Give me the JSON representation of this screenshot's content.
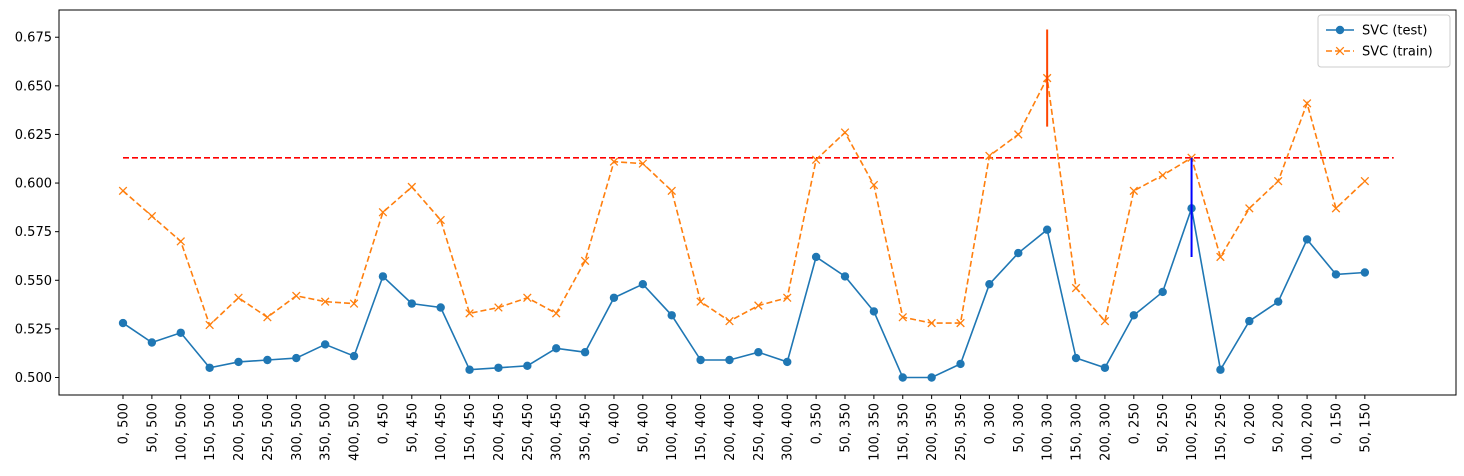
{
  "chart_data": {
    "type": "line",
    "categories": [
      "0, 500",
      "50, 500",
      "100, 500",
      "150, 500",
      "200, 500",
      "250, 500",
      "300, 500",
      "350, 500",
      "400, 500",
      "0, 450",
      "50, 450",
      "100, 450",
      "150, 450",
      "200, 450",
      "250, 450",
      "300, 450",
      "350, 450",
      "0, 400",
      "50, 400",
      "100, 400",
      "150, 400",
      "200, 400",
      "250, 400",
      "300, 400",
      "0, 350",
      "50, 350",
      "100, 350",
      "150, 350",
      "200, 350",
      "250, 350",
      "0, 300",
      "50, 300",
      "100, 300",
      "150, 300",
      "200, 300",
      "0, 250",
      "50, 250",
      "100, 250",
      "150, 250",
      "0, 200",
      "50, 200",
      "100, 200",
      "0, 150",
      "50, 150"
    ],
    "series": [
      {
        "name": "SVC (test)",
        "color": "#1f77b4",
        "marker": "circle",
        "style": "solid",
        "values": [
          0.528,
          0.518,
          0.523,
          0.505,
          0.508,
          0.509,
          0.51,
          0.517,
          0.511,
          0.552,
          0.538,
          0.536,
          0.504,
          0.505,
          0.506,
          0.515,
          0.513,
          0.541,
          0.548,
          0.532,
          0.509,
          0.509,
          0.513,
          0.508,
          0.562,
          0.552,
          0.534,
          0.5,
          0.5,
          0.507,
          0.548,
          0.564,
          0.576,
          0.51,
          0.505,
          0.532,
          0.544,
          0.587,
          0.504,
          0.529,
          0.539,
          0.571,
          0.553,
          0.554
        ]
      },
      {
        "name": "SVC (train)",
        "color": "#ff7f0e",
        "marker": "x",
        "style": "dashed",
        "values": [
          0.596,
          0.583,
          0.57,
          0.527,
          0.541,
          0.531,
          0.542,
          0.539,
          0.538,
          0.585,
          0.598,
          0.581,
          0.533,
          0.536,
          0.541,
          0.533,
          0.56,
          0.611,
          0.61,
          0.596,
          0.539,
          0.529,
          0.537,
          0.541,
          0.612,
          0.626,
          0.599,
          0.531,
          0.528,
          0.528,
          0.614,
          0.625,
          0.654,
          0.546,
          0.529,
          0.596,
          0.604,
          0.613,
          0.562,
          0.587,
          0.601,
          0.641,
          0.587,
          0.601
        ]
      }
    ],
    "reference_line": {
      "value": 0.613,
      "color": "#ff0000",
      "style": "dashed"
    },
    "highlights": [
      {
        "category_index": 32,
        "from": 0.629,
        "to": 0.679,
        "color": "#ff4500"
      },
      {
        "category_index": 37,
        "from": 0.562,
        "to": 0.613,
        "color": "#0000ff"
      }
    ],
    "ylim": [
      0.491,
      0.689
    ],
    "y_ticks": [
      0.5,
      0.525,
      0.55,
      0.575,
      0.6,
      0.625,
      0.65,
      0.675
    ],
    "y_tick_labels": [
      "0.500",
      "0.525",
      "0.550",
      "0.575",
      "0.600",
      "0.625",
      "0.650",
      "0.675"
    ],
    "grid": false,
    "legend_position": "top-right",
    "title": "",
    "xlabel": "",
    "ylabel": ""
  }
}
